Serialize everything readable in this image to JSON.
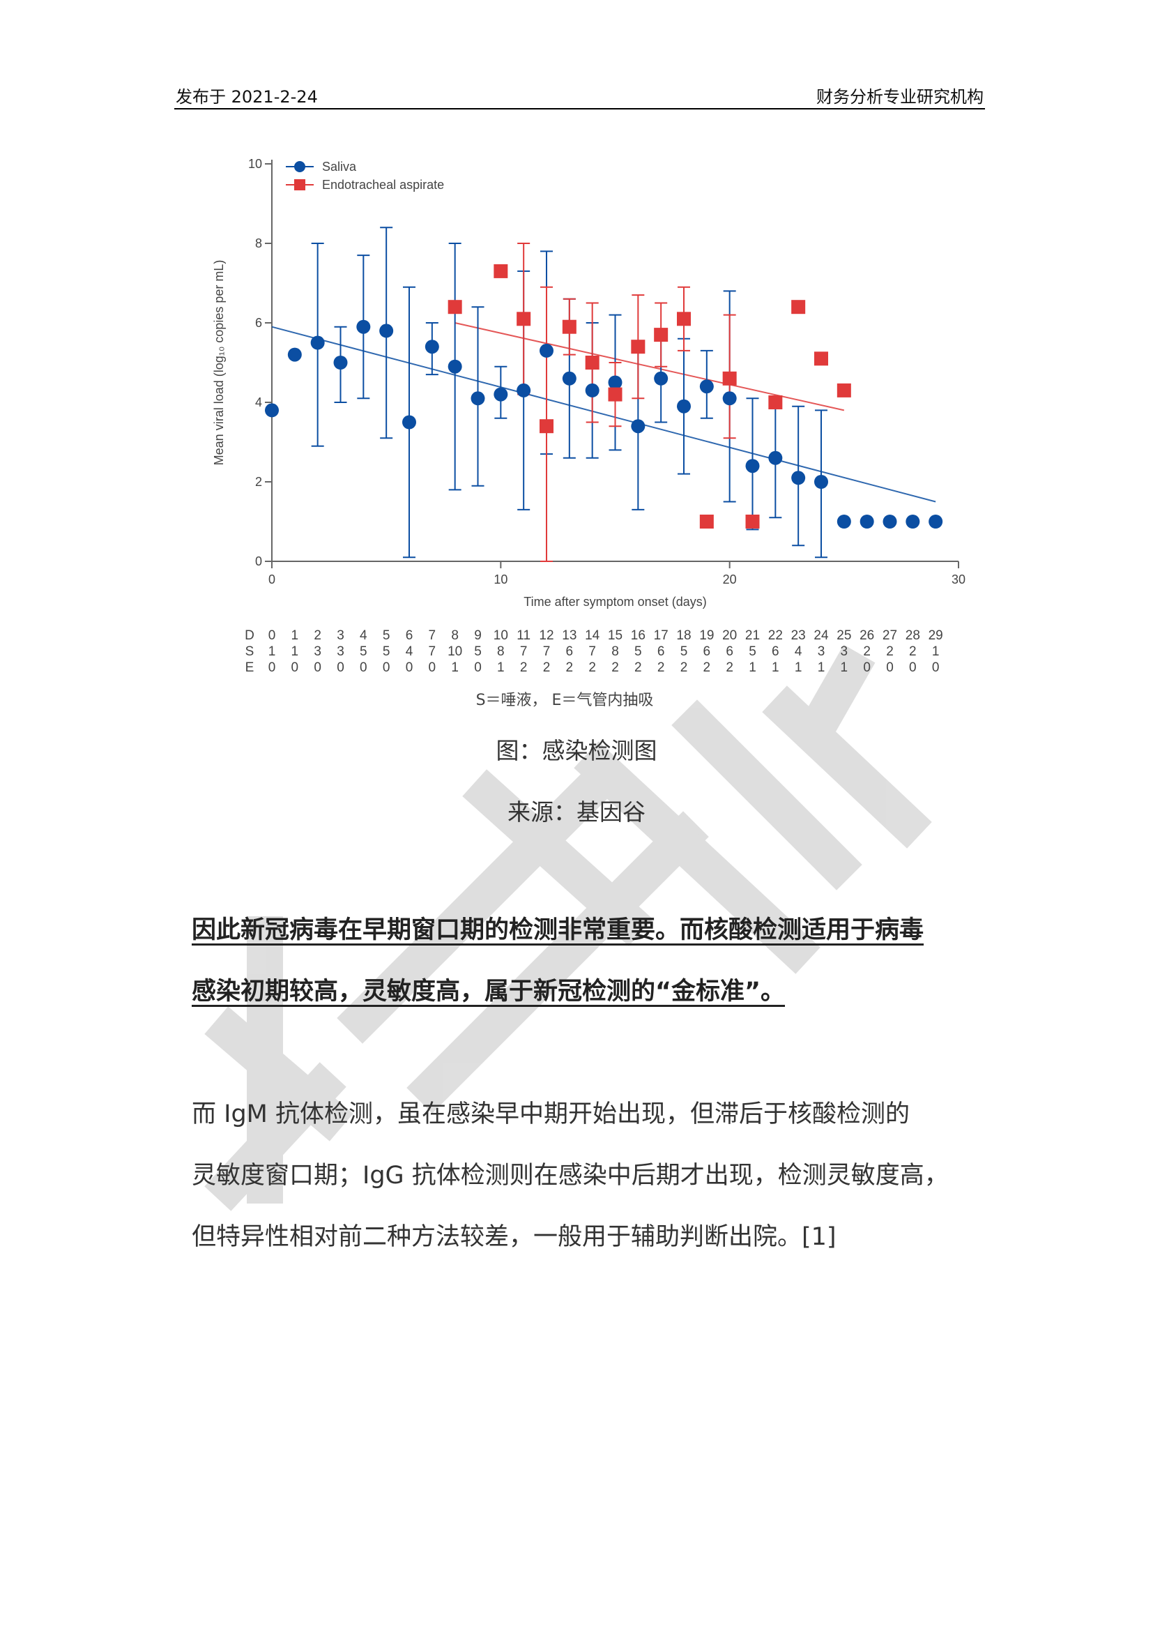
{
  "header": {
    "left": "发布于 2021-2-24",
    "right": "财务分析专业研究机构"
  },
  "chart_data": {
    "type": "scatter",
    "xlabel": "Time after symptom onset (days)",
    "ylabel": "Mean viral load (log₁₀ copies per mL)",
    "xlim": [
      0,
      30
    ],
    "ylim": [
      0,
      10
    ],
    "xticks": [
      0,
      10,
      20,
      30
    ],
    "yticks": [
      0,
      2,
      4,
      6,
      8,
      10
    ],
    "series": [
      {
        "name": "Saliva",
        "color": "#0b4ea2",
        "marker": "circle",
        "points": [
          {
            "x": 0,
            "y": 3.8
          },
          {
            "x": 1,
            "y": 5.2
          },
          {
            "x": 2,
            "y": 5.5,
            "lo": 2.9,
            "hi": 8.0
          },
          {
            "x": 3,
            "y": 5.0,
            "lo": 4.0,
            "hi": 5.9
          },
          {
            "x": 4,
            "y": 5.9,
            "lo": 4.1,
            "hi": 7.7
          },
          {
            "x": 5,
            "y": 5.8,
            "lo": 3.1,
            "hi": 8.4
          },
          {
            "x": 6,
            "y": 3.5,
            "lo": 0.1,
            "hi": 6.9
          },
          {
            "x": 7,
            "y": 5.4,
            "lo": 4.7,
            "hi": 6.0
          },
          {
            "x": 8,
            "y": 4.9,
            "lo": 1.8,
            "hi": 8.0
          },
          {
            "x": 9,
            "y": 4.1,
            "lo": 1.9,
            "hi": 6.4
          },
          {
            "x": 10,
            "y": 4.2,
            "lo": 3.6,
            "hi": 4.9
          },
          {
            "x": 11,
            "y": 4.3,
            "lo": 1.3,
            "hi": 7.3
          },
          {
            "x": 12,
            "y": 5.3,
            "lo": 2.7,
            "hi": 7.8
          },
          {
            "x": 13,
            "y": 4.6,
            "lo": 2.6,
            "hi": 6.6
          },
          {
            "x": 14,
            "y": 4.3,
            "lo": 2.6,
            "hi": 6.0
          },
          {
            "x": 15,
            "y": 4.5,
            "lo": 2.8,
            "hi": 6.2
          },
          {
            "x": 16,
            "y": 3.4,
            "lo": 1.3,
            "hi": 5.5
          },
          {
            "x": 17,
            "y": 4.6,
            "lo": 3.5,
            "hi": 5.8
          },
          {
            "x": 18,
            "y": 3.9,
            "lo": 2.2,
            "hi": 5.6
          },
          {
            "x": 19,
            "y": 4.4,
            "lo": 3.6,
            "hi": 5.3
          },
          {
            "x": 20,
            "y": 4.1,
            "lo": 1.5,
            "hi": 6.8
          },
          {
            "x": 21,
            "y": 2.4,
            "lo": 0.8,
            "hi": 4.1
          },
          {
            "x": 22,
            "y": 2.6,
            "lo": 1.1,
            "hi": 4.1
          },
          {
            "x": 23,
            "y": 2.1,
            "lo": 0.4,
            "hi": 3.9
          },
          {
            "x": 24,
            "y": 2.0,
            "lo": 0.1,
            "hi": 3.8
          },
          {
            "x": 25,
            "y": 1.0
          },
          {
            "x": 26,
            "y": 1.0
          },
          {
            "x": 27,
            "y": 1.0
          },
          {
            "x": 28,
            "y": 1.0
          },
          {
            "x": 29,
            "y": 1.0
          }
        ],
        "trend": {
          "x0": 0,
          "y0": 5.9,
          "x1": 29,
          "y1": 1.5
        }
      },
      {
        "name": "Endotracheal aspirate",
        "color": "#e03a3a",
        "marker": "square",
        "points": [
          {
            "x": 8,
            "y": 6.4
          },
          {
            "x": 10,
            "y": 7.3
          },
          {
            "x": 11,
            "y": 6.1,
            "lo": 4.2,
            "hi": 8.0
          },
          {
            "x": 12,
            "y": 3.4,
            "lo": 0.0,
            "hi": 6.9
          },
          {
            "x": 13,
            "y": 5.9,
            "lo": 5.2,
            "hi": 6.6
          },
          {
            "x": 14,
            "y": 5.0,
            "lo": 3.5,
            "hi": 6.5
          },
          {
            "x": 15,
            "y": 4.2,
            "lo": 3.4,
            "hi": 5.0
          },
          {
            "x": 16,
            "y": 5.4,
            "lo": 4.1,
            "hi": 6.7
          },
          {
            "x": 17,
            "y": 5.7,
            "lo": 4.9,
            "hi": 6.5
          },
          {
            "x": 18,
            "y": 6.1,
            "lo": 5.3,
            "hi": 6.9
          },
          {
            "x": 19,
            "y": 1.0
          },
          {
            "x": 20,
            "y": 4.6,
            "lo": 3.1,
            "hi": 6.2
          },
          {
            "x": 21,
            "y": 1.0
          },
          {
            "x": 22,
            "y": 4.0
          },
          {
            "x": 23,
            "y": 6.4
          },
          {
            "x": 24,
            "y": 5.1
          },
          {
            "x": 25,
            "y": 4.3
          }
        ],
        "trend": {
          "x0": 8,
          "y0": 6.0,
          "x1": 25,
          "y1": 3.8
        }
      }
    ],
    "table": {
      "row_labels": [
        "D",
        "S",
        "E"
      ],
      "D": [
        "0",
        "1",
        "2",
        "3",
        "4",
        "5",
        "6",
        "7",
        "8",
        "9",
        "10",
        "11",
        "12",
        "13",
        "14",
        "15",
        "16",
        "17",
        "18",
        "19",
        "20",
        "21",
        "22",
        "23",
        "24",
        "25",
        "26",
        "27",
        "28",
        "29"
      ],
      "S": [
        "1",
        "1",
        "3",
        "3",
        "5",
        "5",
        "4",
        "7",
        "10",
        "5",
        "8",
        "7",
        "7",
        "6",
        "7",
        "8",
        "5",
        "6",
        "5",
        "6",
        "6",
        "5",
        "6",
        "4",
        "3",
        "3",
        "2",
        "2",
        "2",
        "1"
      ],
      "E": [
        "0",
        "0",
        "0",
        "0",
        "0",
        "0",
        "0",
        "0",
        "1",
        "0",
        "1",
        "2",
        "2",
        "2",
        "2",
        "2",
        "2",
        "2",
        "2",
        "2",
        "2",
        "1",
        "1",
        "1",
        "1",
        "1",
        "0",
        "0",
        "0",
        "0"
      ]
    },
    "note": "S＝唾液， E＝气管内抽吸"
  },
  "captions": {
    "figure": "图：感染检测图",
    "source": "来源：基因谷"
  },
  "bold_paragraph": {
    "line1": "因此新冠病毒在早期窗口期的检测非常重要。而核酸检测适用于病毒",
    "line2": "感染初期较高，灵敏度高，属于新冠检测的“金标准”。 "
  },
  "paragraph": {
    "line1": "而 IgM 抗体检测，虽在感染早中期开始出现，但滞后于核酸检测的",
    "line2": "灵敏度窗口期；IgG 抗体检测则在感染中后期才出现，检测灵敏度高，",
    "line3": "但特异性相对前二种方法较差，一般用于辅助判断出院。[1]"
  }
}
